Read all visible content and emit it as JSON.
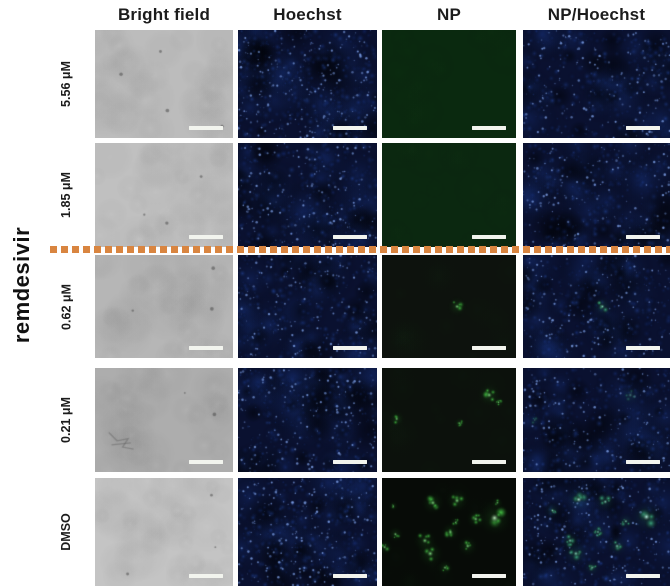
{
  "figure": {
    "column_headers": [
      "Bright field",
      "Hoechst",
      "NP",
      "NP/Hoechst"
    ],
    "group_label": "remdesivir",
    "row_labels": [
      "5.56 μM",
      "1.85 μM",
      "0.62 μM",
      "0.21 μM",
      "DMSO"
    ],
    "divider": {
      "description": "orange dotted line separating 1.85 uM and 0.62 uM rows",
      "color": "#d98540"
    },
    "scale_bar_color": "#f2f4ee",
    "rows": [
      {
        "label": "5.56 μM",
        "panels": [
          {
            "type": "brightfield",
            "base": "#bcbcbc",
            "specks": 4,
            "scale_bar": true
          },
          {
            "type": "hoechst",
            "base": "#0a1130",
            "variant": "dense",
            "scale_bar": true
          },
          {
            "type": "np",
            "base": "#0a290f",
            "spots": [],
            "scale_bar": true
          },
          {
            "type": "np_hoechst",
            "base": "#0a1130",
            "spots": [],
            "scale_bar": true
          }
        ]
      },
      {
        "label": "1.85 μM",
        "panels": [
          {
            "type": "brightfield",
            "base": "#c0c0c0",
            "specks": 3,
            "scale_bar": true
          },
          {
            "type": "hoechst",
            "base": "#0a1130",
            "scale_bar": true
          },
          {
            "type": "np",
            "base": "#0b2810",
            "spots": [],
            "scale_bar": true
          },
          {
            "type": "np_hoechst",
            "base": "#0a1130",
            "spots": [],
            "scale_bar": true
          }
        ]
      },
      {
        "label": "0.62 μM",
        "panels": [
          {
            "type": "brightfield",
            "base": "#b6b6b6",
            "specks": 3,
            "scale_bar": true
          },
          {
            "type": "hoechst",
            "base": "#0a1130",
            "scale_bar": true
          },
          {
            "type": "np",
            "base": "#0d120d",
            "spots": [
              {
                "x": 56,
                "y": 50,
                "r": 5
              }
            ],
            "scale_bar": true
          },
          {
            "type": "np_hoechst",
            "base": "#0a1130",
            "spots": [
              {
                "x": 54,
                "y": 50,
                "r": 5
              }
            ],
            "scale_bar": true
          }
        ]
      },
      {
        "label": "0.21 μM",
        "panels": [
          {
            "type": "brightfield",
            "base": "#adadad",
            "specks": 2,
            "scribble": true,
            "scale_bar": true
          },
          {
            "type": "hoechst",
            "base": "#0a1130",
            "variant": "voids",
            "scale_bar": true
          },
          {
            "type": "np",
            "base": "#0c110c",
            "spots": [
              {
                "x": 80,
                "y": 26,
                "r": 6
              },
              {
                "x": 87,
                "y": 33,
                "r": 3
              },
              {
                "x": 11,
                "y": 49,
                "r": 4
              },
              {
                "x": 58,
                "y": 53,
                "r": 3
              }
            ],
            "scale_bar": true
          },
          {
            "type": "np_hoechst",
            "base": "#0a1130",
            "spots": [
              {
                "x": 73,
                "y": 26,
                "r": 5,
                "faint": true
              },
              {
                "x": 8,
                "y": 50,
                "r": 3,
                "faint": true
              }
            ],
            "scale_bar": true
          }
        ]
      },
      {
        "label": "DMSO",
        "panels": [
          {
            "type": "brightfield",
            "base": "#c4c4c4",
            "specks": 3,
            "scale_bar": true
          },
          {
            "type": "hoechst",
            "base": "#0a1130",
            "variant": "dense",
            "scale_bar": true
          },
          {
            "type": "np",
            "base": "#070b07",
            "spots": [
              {
                "x": 8.5,
                "y": 26,
                "r": 2.5
              },
              {
                "x": 38,
                "y": 23,
                "r": 6
              },
              {
                "x": 56,
                "y": 21,
                "r": 6
              },
              {
                "x": 86,
                "y": 23,
                "r": 3
              },
              {
                "x": 84,
                "y": 37,
                "r": 9,
                "bright": true
              },
              {
                "x": 70,
                "y": 38,
                "r": 5
              },
              {
                "x": 55,
                "y": 41,
                "r": 3
              },
              {
                "x": 10,
                "y": 52,
                "r": 4
              },
              {
                "x": 2,
                "y": 64,
                "r": 4
              },
              {
                "x": 32,
                "y": 58,
                "r": 6
              },
              {
                "x": 51,
                "y": 50,
                "r": 5
              },
              {
                "x": 36,
                "y": 70,
                "r": 7
              },
              {
                "x": 64,
                "y": 63,
                "r": 5
              },
              {
                "x": 47,
                "y": 83,
                "r": 4
              }
            ],
            "scale_bar": true
          },
          {
            "type": "np_hoechst",
            "base": "#0a1130",
            "spots": [
              {
                "x": 38,
                "y": 20,
                "r": 6,
                "bright": true
              },
              {
                "x": 56,
                "y": 22,
                "r": 5
              },
              {
                "x": 84,
                "y": 36,
                "r": 8,
                "bright": true
              },
              {
                "x": 70,
                "y": 40,
                "r": 4
              },
              {
                "x": 32,
                "y": 58,
                "r": 5
              },
              {
                "x": 51,
                "y": 50,
                "r": 4
              },
              {
                "x": 36,
                "y": 70,
                "r": 6
              },
              {
                "x": 64,
                "y": 63,
                "r": 5
              },
              {
                "x": 20,
                "y": 30,
                "r": 4
              },
              {
                "x": 47,
                "y": 83,
                "r": 4
              }
            ],
            "scale_bar": true
          }
        ]
      }
    ]
  }
}
